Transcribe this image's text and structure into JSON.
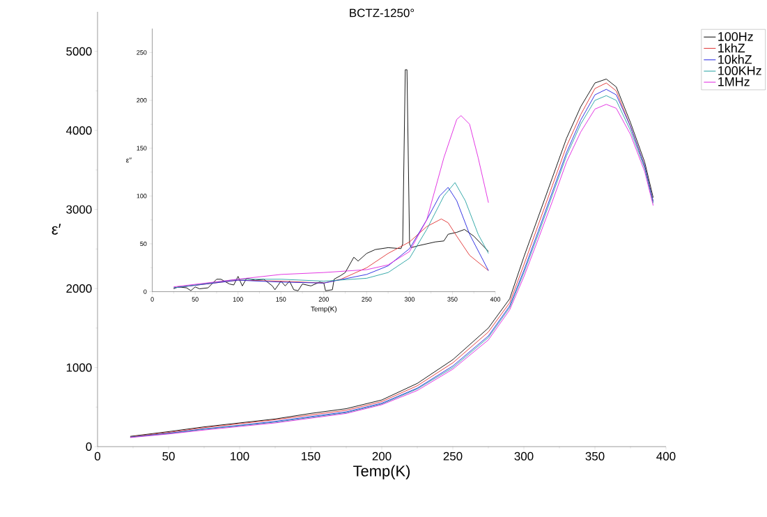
{
  "chart_data": [
    {
      "type": "line",
      "title": "BCTZ-1250°",
      "xlabel": "Temp(K)",
      "ylabel": "ε′",
      "xlim": [
        0,
        400
      ],
      "ylim": [
        0,
        5500
      ],
      "xticks": [
        0,
        50,
        100,
        150,
        200,
        250,
        300,
        350,
        400
      ],
      "yticks": [
        0,
        1000,
        2000,
        3000,
        4000,
        5000
      ],
      "legend": "top right",
      "x": [
        23,
        50,
        75,
        100,
        125,
        150,
        175,
        200,
        225,
        250,
        275,
        290,
        300,
        310,
        320,
        330,
        340,
        350,
        358,
        365,
        375,
        385,
        391
      ],
      "series": [
        {
          "name": "100Hz",
          "color": "#000000",
          "values": [
            130,
            190,
            250,
            300,
            350,
            420,
            480,
            590,
            800,
            1100,
            1500,
            1870,
            2400,
            2900,
            3400,
            3900,
            4300,
            4600,
            4650,
            4550,
            4100,
            3600,
            3150
          ]
        },
        {
          "name": "1khZ",
          "color": "#e03030",
          "values": [
            125,
            180,
            240,
            290,
            340,
            400,
            460,
            570,
            770,
            1060,
            1450,
            1820,
            2300,
            2800,
            3300,
            3800,
            4200,
            4530,
            4600,
            4500,
            4050,
            3550,
            3100
          ]
        },
        {
          "name": "10khZ",
          "color": "#2020e0",
          "values": [
            120,
            170,
            225,
            270,
            320,
            380,
            440,
            550,
            740,
            1020,
            1400,
            1780,
            2230,
            2720,
            3220,
            3720,
            4130,
            4450,
            4520,
            4450,
            4050,
            3550,
            3100
          ]
        },
        {
          "name": "100KHz",
          "color": "#20a0a0",
          "values": [
            120,
            165,
            220,
            265,
            310,
            370,
            430,
            540,
            730,
            1000,
            1380,
            1760,
            2200,
            2680,
            3180,
            3680,
            4080,
            4380,
            4440,
            4380,
            4000,
            3520,
            3080
          ]
        },
        {
          "name": "1MHz",
          "color": "#e020e0",
          "values": [
            115,
            160,
            210,
            255,
            300,
            360,
            420,
            530,
            710,
            980,
            1350,
            1730,
            2150,
            2620,
            3100,
            3600,
            3980,
            4270,
            4330,
            4280,
            3950,
            3480,
            3050
          ]
        }
      ]
    },
    {
      "type": "line",
      "xlabel": "Temp(K)",
      "ylabel": "ε′′",
      "xlim": [
        0,
        400
      ],
      "ylim": [
        0,
        275
      ],
      "xticks": [
        0,
        50,
        100,
        150,
        200,
        250,
        300,
        350,
        400
      ],
      "yticks": [
        0,
        50,
        100,
        150,
        200,
        250
      ],
      "series": [
        {
          "color": "#000000",
          "x": [
            25,
            30,
            40,
            45,
            50,
            55,
            65,
            75,
            80,
            90,
            95,
            100,
            105,
            110,
            120,
            130,
            140,
            143,
            150,
            155,
            160,
            165,
            170,
            175,
            185,
            195,
            200,
            202,
            210,
            212,
            220,
            225,
            235,
            240,
            250,
            260,
            275,
            290,
            292,
            295,
            297,
            300,
            302,
            310,
            330,
            340,
            345,
            355,
            364,
            375,
            392
          ],
          "values": [
            3,
            5,
            4,
            1,
            5,
            3,
            4,
            13,
            13,
            8,
            7,
            16,
            6,
            14,
            12,
            13,
            6,
            2,
            11,
            6,
            11,
            2,
            1,
            8,
            6,
            10,
            9,
            1,
            2,
            13,
            17,
            20,
            36,
            32,
            40,
            44,
            46,
            45,
            50,
            232,
            232,
            50,
            46,
            48,
            52,
            53,
            60,
            62,
            65,
            58,
            42
          ]
        },
        {
          "color": "#e03030",
          "x": [
            25,
            100,
            150,
            200,
            220,
            250,
            275,
            300,
            320,
            337,
            345,
            355,
            370,
            392
          ],
          "values": [
            4,
            12,
            11,
            9,
            13,
            25,
            40,
            52,
            68,
            76,
            72,
            58,
            38,
            22
          ]
        },
        {
          "color": "#2020e0",
          "x": [
            25,
            100,
            150,
            200,
            250,
            275,
            300,
            320,
            335,
            345,
            355,
            370,
            392
          ],
          "values": [
            4,
            12,
            10,
            9,
            18,
            27,
            45,
            75,
            100,
            109,
            95,
            60,
            22
          ]
        },
        {
          "color": "#20a0a0",
          "x": [
            25,
            100,
            150,
            200,
            250,
            275,
            300,
            320,
            340,
            353,
            365,
            380,
            392
          ],
          "values": [
            4,
            13,
            13,
            11,
            14,
            20,
            35,
            65,
            100,
            114,
            95,
            60,
            40
          ]
        },
        {
          "color": "#e020e0",
          "x": [
            25,
            100,
            150,
            200,
            250,
            275,
            300,
            320,
            340,
            355,
            360,
            370,
            380,
            392
          ],
          "values": [
            5,
            13,
            18,
            20,
            23,
            28,
            42,
            75,
            140,
            180,
            184,
            175,
            140,
            93
          ]
        }
      ]
    }
  ]
}
